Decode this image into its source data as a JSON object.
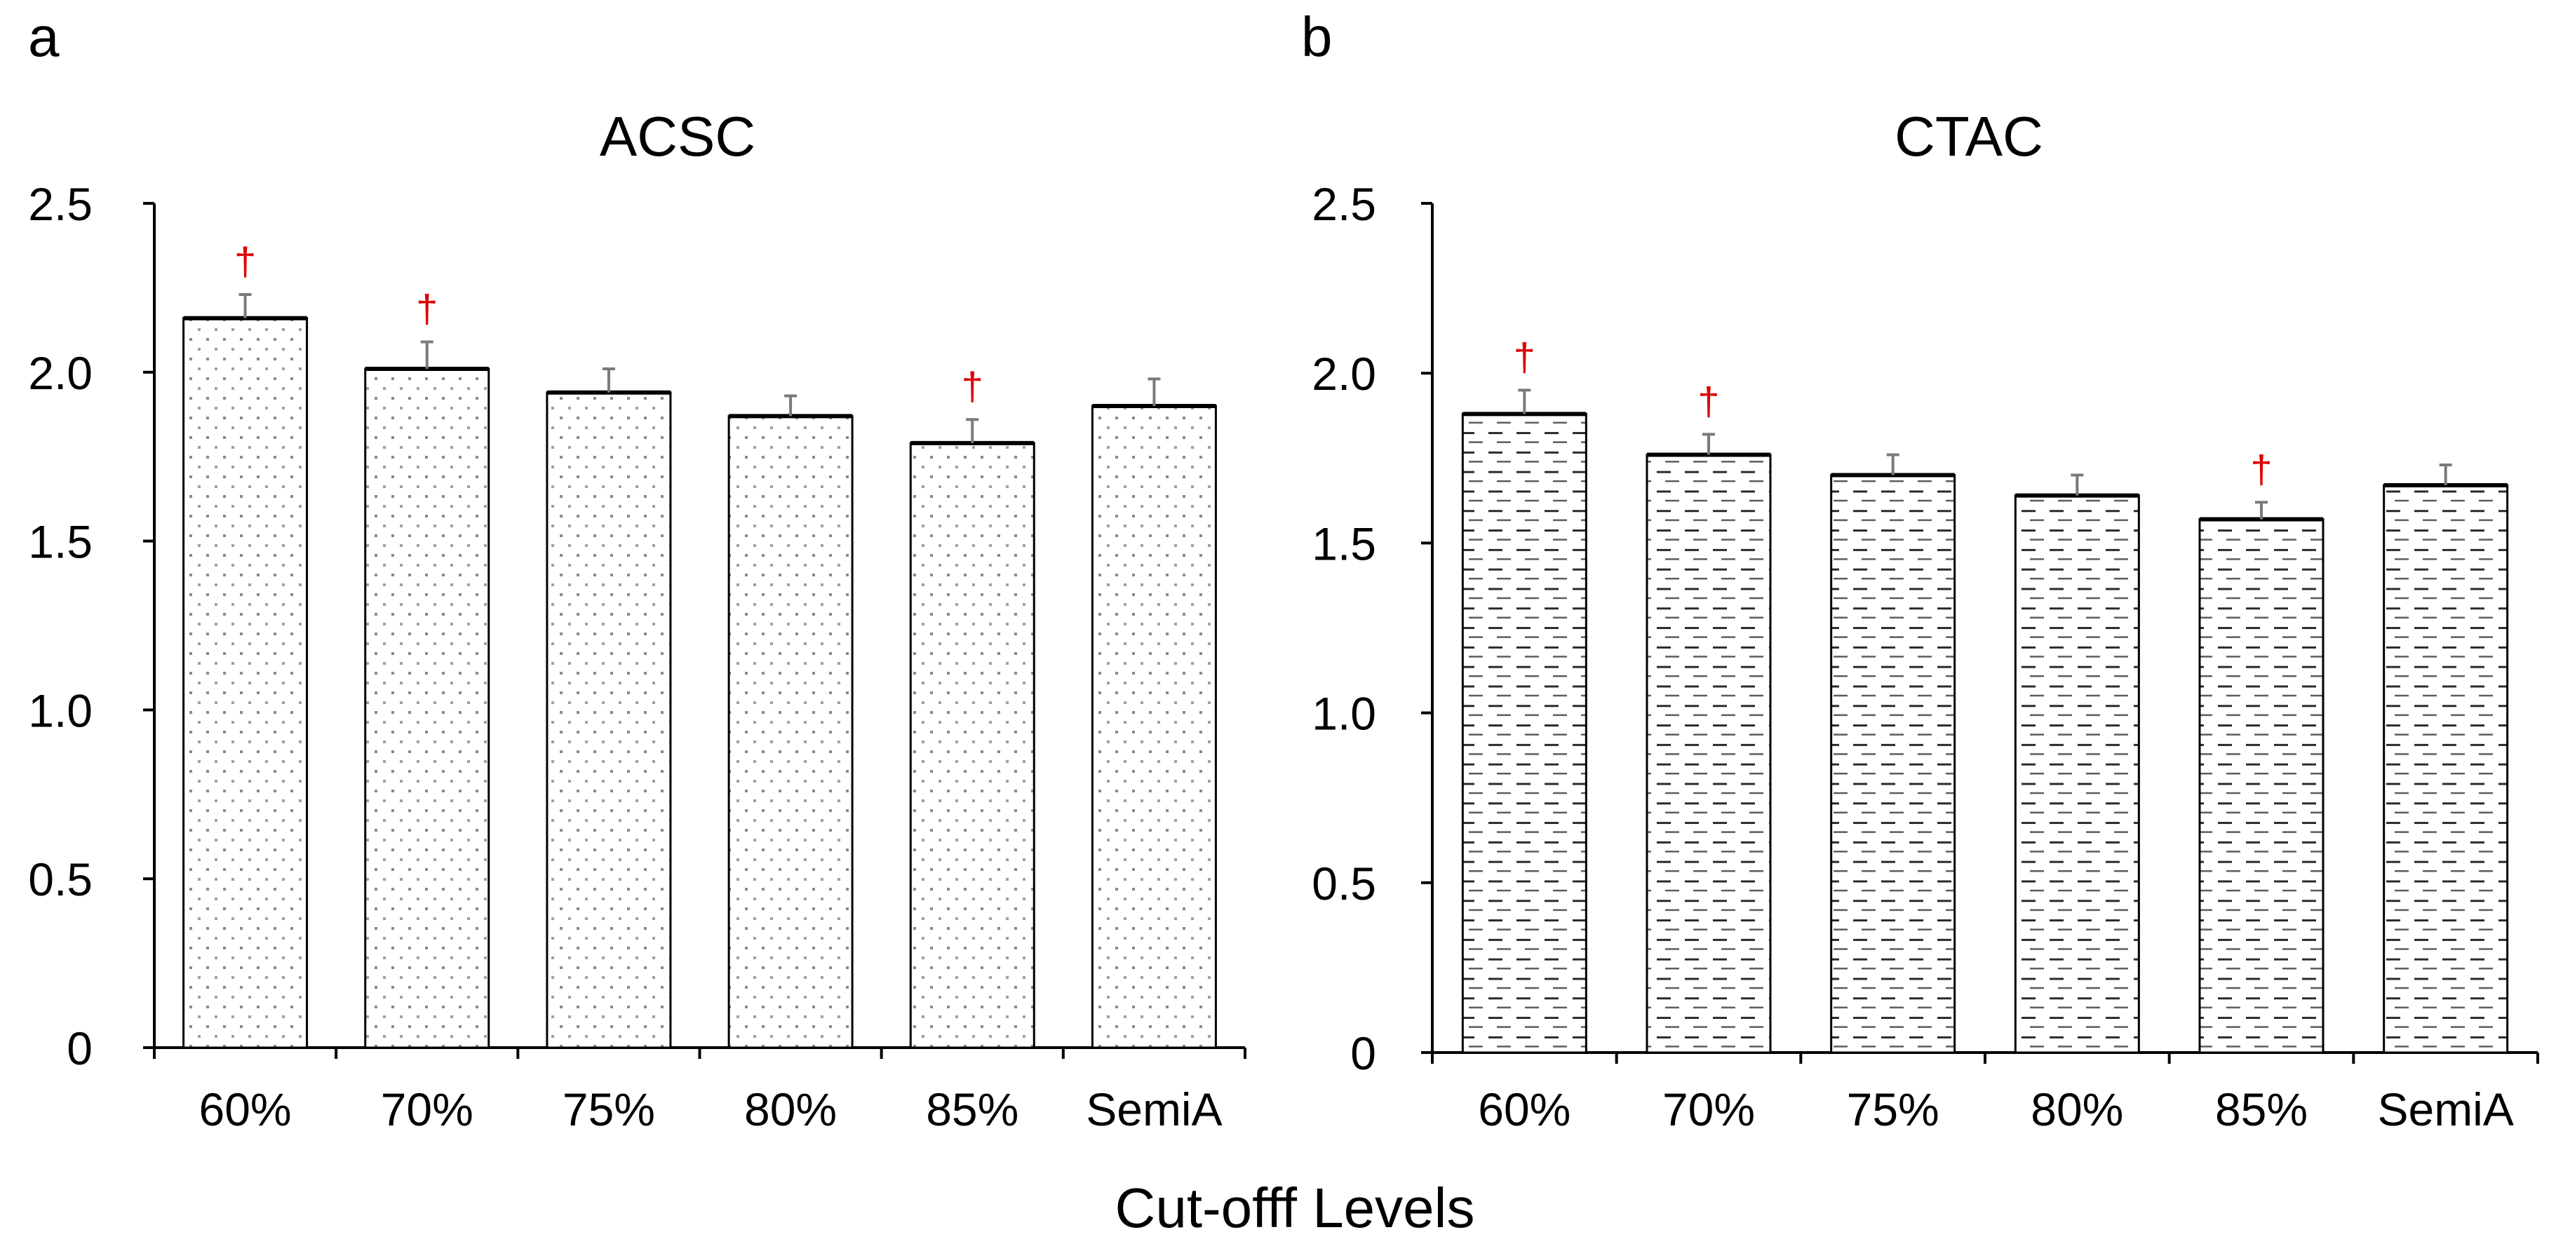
{
  "figure": {
    "xlabel": "Cut-offf Levels"
  },
  "chart_data": [
    {
      "type": "bar",
      "panel_label": "a",
      "title": "ACSC",
      "categories": [
        "60%",
        "70%",
        "75%",
        "80%",
        "85%",
        "SemiA"
      ],
      "values": [
        2.16,
        2.01,
        1.94,
        1.87,
        1.79,
        1.9
      ],
      "errors": [
        0.07,
        0.08,
        0.07,
        0.06,
        0.07,
        0.08
      ],
      "significance": [
        "†",
        "†",
        "",
        "",
        "†",
        ""
      ],
      "ylim": [
        0,
        2.5
      ],
      "yticks": [
        0,
        0.5,
        1.0,
        1.5,
        2.0,
        2.5
      ],
      "ytick_labels": [
        "0",
        "0.5",
        "1.0",
        "1.5",
        "2.0",
        "2.5"
      ],
      "fill_pattern": "dotted",
      "grid": false
    },
    {
      "type": "bar",
      "panel_label": "b",
      "title": "CTAC",
      "categories": [
        "60%",
        "70%",
        "75%",
        "80%",
        "85%",
        "SemiA"
      ],
      "values": [
        1.88,
        1.76,
        1.7,
        1.64,
        1.57,
        1.67
      ],
      "errors": [
        0.07,
        0.06,
        0.06,
        0.06,
        0.05,
        0.06
      ],
      "significance": [
        "†",
        "†",
        "",
        "",
        "†",
        ""
      ],
      "ylim": [
        0,
        2.5
      ],
      "yticks": [
        0,
        0.5,
        1.0,
        1.5,
        2.0,
        2.5
      ],
      "ytick_labels": [
        "0",
        "0.5",
        "1.0",
        "1.5",
        "2.0",
        "2.5"
      ],
      "fill_pattern": "dashed",
      "grid": false
    }
  ],
  "colors": {
    "axis": "#000000",
    "bar_fill": "#ffffff",
    "bar_outline": "#000000",
    "dot_pattern": "#8a8a8a",
    "dash_pattern": "#3a3a3a",
    "significance": "#e00000",
    "error_bar": "#7a7a7a"
  }
}
